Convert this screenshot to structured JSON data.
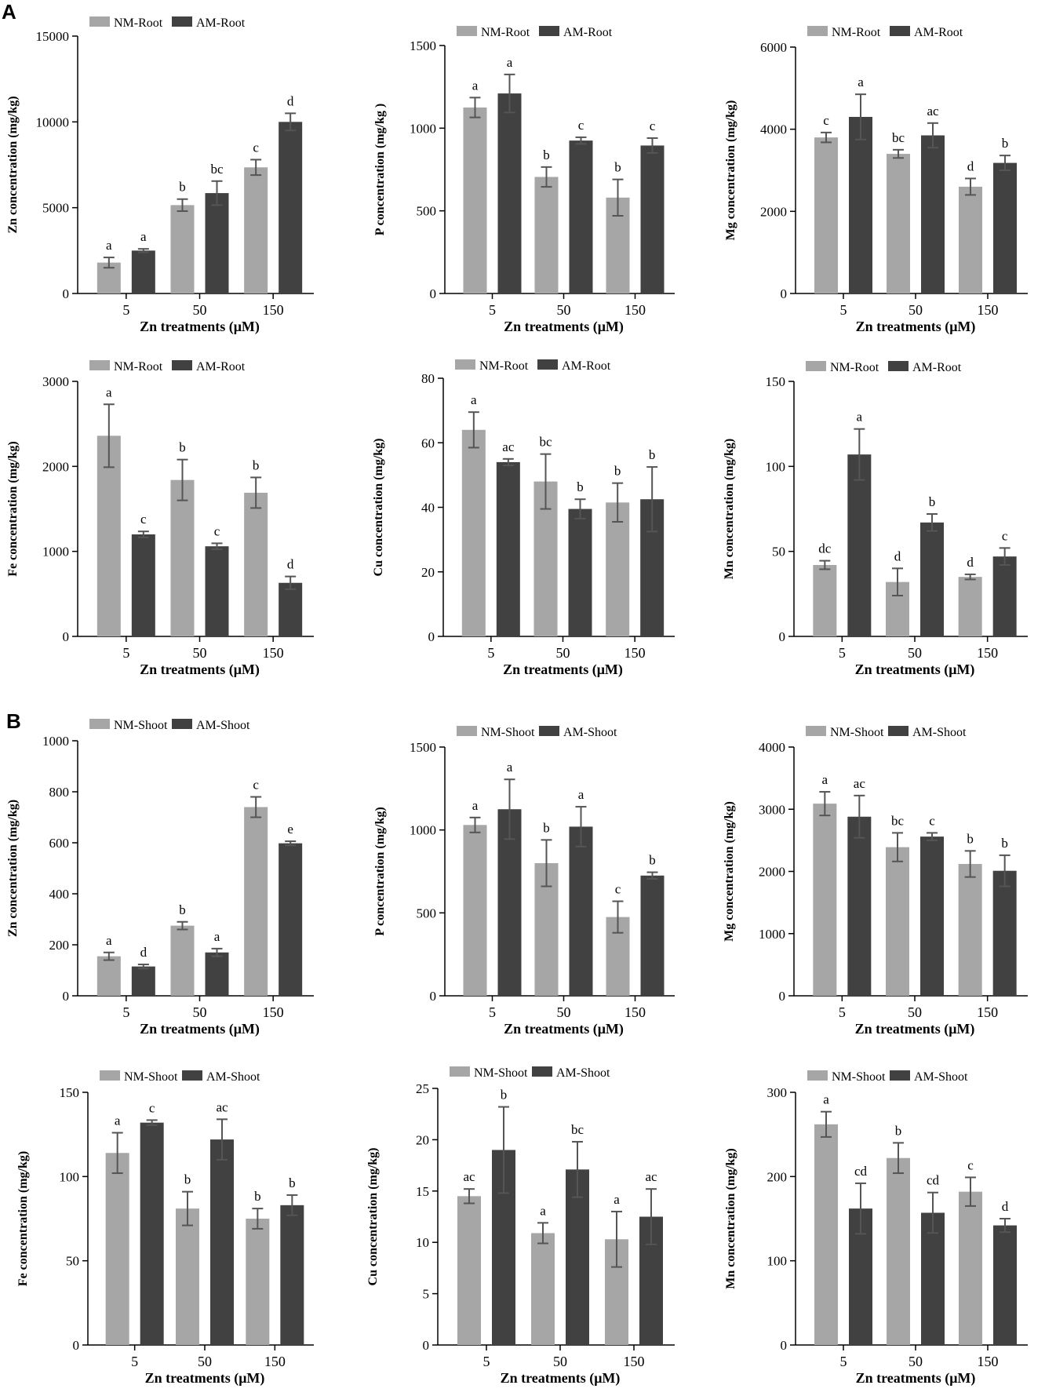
{
  "panel_labels": [
    "A",
    "B"
  ],
  "colors": {
    "nm": "#a6a6a6",
    "am": "#414141",
    "error_bar": "#555555",
    "axis": "#000000"
  },
  "chart_data": [
    {
      "id": "zn-root",
      "type": "bar",
      "title": "",
      "xlabel": "Zn treatments (μM)",
      "ylabel": "Zn concentration (mg/kg)",
      "categories": [
        "5",
        "50",
        "150"
      ],
      "ylim": [
        0,
        15000
      ],
      "yticks": [
        "0",
        "5000",
        "10000",
        "15000"
      ],
      "series": [
        {
          "name": "NM-Root",
          "values": [
            1800,
            5150,
            7350
          ],
          "errors": [
            300,
            350,
            450
          ],
          "letters": [
            "a",
            "b",
            "c"
          ]
        },
        {
          "name": "AM-Root",
          "values": [
            2500,
            5850,
            10000
          ],
          "errors": [
            100,
            700,
            500
          ],
          "letters": [
            "a",
            "bc",
            "d"
          ]
        }
      ]
    },
    {
      "id": "p-root",
      "type": "bar",
      "title": "",
      "xlabel": "Zn treatments (μM)",
      "ylabel": "P concentration (mg/kg )",
      "categories": [
        "5",
        "50",
        "150"
      ],
      "ylim": [
        0,
        1500
      ],
      "yticks": [
        "0",
        "500",
        "1000",
        "1500"
      ],
      "series": [
        {
          "name": "NM-Root",
          "values": [
            1125,
            705,
            580
          ],
          "errors": [
            60,
            60,
            110
          ],
          "letters": [
            "a",
            "b",
            "b"
          ]
        },
        {
          "name": "AM-Root",
          "values": [
            1210,
            925,
            895
          ],
          "errors": [
            115,
            20,
            45
          ],
          "letters": [
            "a",
            "c",
            "c"
          ]
        }
      ]
    },
    {
      "id": "mg-root",
      "type": "bar",
      "title": "",
      "xlabel": "Zn treatments (μM)",
      "ylabel": "Mg concentration (mg/kg)",
      "categories": [
        "5",
        "50",
        "150"
      ],
      "ylim": [
        0,
        6000
      ],
      "yticks": [
        "0",
        "2000",
        "4000",
        "6000"
      ],
      "series": [
        {
          "name": "NM-Root",
          "values": [
            3800,
            3400,
            2600
          ],
          "errors": [
            120,
            100,
            200
          ],
          "letters": [
            "c",
            "bc",
            "d"
          ]
        },
        {
          "name": "AM-Root",
          "values": [
            4300,
            3850,
            3180
          ],
          "errors": [
            550,
            300,
            180
          ],
          "letters": [
            "a",
            "ac",
            "b"
          ]
        }
      ]
    },
    {
      "id": "fe-root",
      "type": "bar",
      "title": "",
      "xlabel": "Zn treatments (μM)",
      "ylabel": "Fe concentration (mg/kg)",
      "categories": [
        "5",
        "50",
        "150"
      ],
      "ylim": [
        0,
        3000
      ],
      "yticks": [
        "0",
        "1000",
        "2000",
        "3000"
      ],
      "series": [
        {
          "name": "NM-Root",
          "values": [
            2360,
            1840,
            1690
          ],
          "errors": [
            370,
            240,
            180
          ],
          "letters": [
            "a",
            "b",
            "b"
          ]
        },
        {
          "name": "AM-Root",
          "values": [
            1200,
            1060,
            630
          ],
          "errors": [
            35,
            35,
            75
          ],
          "letters": [
            "c",
            "c",
            "d"
          ]
        }
      ]
    },
    {
      "id": "cu-root",
      "type": "bar",
      "title": "",
      "xlabel": "Zn treatments (μM)",
      "ylabel": "Cu concentration (mg/kg)",
      "categories": [
        "5",
        "50",
        "150"
      ],
      "ylim": [
        0,
        80
      ],
      "yticks": [
        "0",
        "20",
        "40",
        "60",
        "80"
      ],
      "series": [
        {
          "name": "NM-Root",
          "values": [
            64,
            48,
            41.5
          ],
          "errors": [
            5.5,
            8.5,
            6
          ],
          "letters": [
            "a",
            "bc",
            "b"
          ]
        },
        {
          "name": "AM-Root",
          "values": [
            54,
            39.5,
            42.5
          ],
          "errors": [
            1,
            3,
            10
          ],
          "letters": [
            "ac",
            "b",
            "b"
          ]
        }
      ]
    },
    {
      "id": "mn-root",
      "type": "bar",
      "title": "",
      "xlabel": "Zn treatments (μM)",
      "ylabel": "Mn concentration (mg/kg)",
      "categories": [
        "5",
        "50",
        "150"
      ],
      "ylim": [
        0,
        150
      ],
      "yticks": [
        "0",
        "50",
        "100",
        "150"
      ],
      "series": [
        {
          "name": "NM-Root",
          "values": [
            42,
            32,
            35
          ],
          "errors": [
            2.5,
            8,
            1.5
          ],
          "letters": [
            "dc",
            "d",
            "d"
          ]
        },
        {
          "name": "AM-Root",
          "values": [
            107,
            67,
            47
          ],
          "errors": [
            15,
            5,
            5
          ],
          "letters": [
            "a",
            "b",
            "c"
          ]
        }
      ]
    },
    {
      "id": "zn-shoot",
      "type": "bar",
      "title": "",
      "xlabel": "Zn treatments (μM)",
      "ylabel": "Zn concentration (mg/kg)",
      "categories": [
        "5",
        "50",
        "150"
      ],
      "ylim": [
        0,
        1000
      ],
      "yticks": [
        "0",
        "200",
        "400",
        "600",
        "800",
        "1000"
      ],
      "series": [
        {
          "name": "NM-Shoot",
          "values": [
            155,
            275,
            740
          ],
          "errors": [
            15,
            15,
            40
          ],
          "letters": [
            "a",
            "b",
            "c"
          ]
        },
        {
          "name": "AM-Shoot",
          "values": [
            115,
            170,
            598
          ],
          "errors": [
            8,
            15,
            8
          ],
          "letters": [
            "d",
            "a",
            "e"
          ]
        }
      ]
    },
    {
      "id": "p-shoot",
      "type": "bar",
      "title": "",
      "xlabel": "Zn treatments (μM)",
      "ylabel": "P concentration (mg/kg)",
      "categories": [
        "5",
        "50",
        "150"
      ],
      "ylim": [
        0,
        1500
      ],
      "yticks": [
        "0",
        "500",
        "1000",
        "1500"
      ],
      "series": [
        {
          "name": "NM-Shoot",
          "values": [
            1030,
            800,
            475
          ],
          "errors": [
            45,
            140,
            95
          ],
          "letters": [
            "a",
            "b",
            "c"
          ]
        },
        {
          "name": "AM-Shoot",
          "values": [
            1125,
            1020,
            725
          ],
          "errors": [
            180,
            120,
            20
          ],
          "letters": [
            "a",
            "a",
            "b"
          ]
        }
      ]
    },
    {
      "id": "mg-shoot",
      "type": "bar",
      "title": "",
      "xlabel": "Zn treatments (μM)",
      "ylabel": "Mg concentration (mg/kg)",
      "categories": [
        "5",
        "50",
        "150"
      ],
      "ylim": [
        0,
        4000
      ],
      "yticks": [
        "0",
        "1000",
        "2000",
        "3000",
        "4000"
      ],
      "series": [
        {
          "name": "NM-Shoot",
          "values": [
            3090,
            2390,
            2120
          ],
          "errors": [
            190,
            230,
            210
          ],
          "letters": [
            "a",
            "bc",
            "b"
          ]
        },
        {
          "name": "AM-Shoot",
          "values": [
            2880,
            2560,
            2010
          ],
          "errors": [
            340,
            60,
            250
          ],
          "letters": [
            "ac",
            "c",
            "b"
          ]
        }
      ]
    },
    {
      "id": "fe-shoot",
      "type": "bar",
      "title": "",
      "xlabel": "Zn treatments (μM)",
      "ylabel": "Fe concentration (mg/kg)",
      "categories": [
        "5",
        "50",
        "150"
      ],
      "ylim": [
        0,
        150
      ],
      "yticks": [
        "0",
        "50",
        "100",
        "150"
      ],
      "series": [
        {
          "name": "NM-Shoot",
          "values": [
            114,
            81,
            75
          ],
          "errors": [
            12,
            10,
            6
          ],
          "letters": [
            "a",
            "b",
            "b"
          ]
        },
        {
          "name": "AM-Shoot",
          "values": [
            132,
            122,
            83
          ],
          "errors": [
            1.5,
            12,
            6
          ],
          "letters": [
            "c",
            "ac",
            "b"
          ]
        }
      ]
    },
    {
      "id": "cu-shoot",
      "type": "bar",
      "title": "",
      "xlabel": "Zn treatments (μM)",
      "ylabel": "Cu concentration (mg/kg)",
      "categories": [
        "5",
        "50",
        "150"
      ],
      "ylim": [
        0,
        25
      ],
      "yticks": [
        "0",
        "5",
        "10",
        "15",
        "20",
        "25"
      ],
      "series": [
        {
          "name": "NM-Shoot",
          "values": [
            14.5,
            10.9,
            10.3
          ],
          "errors": [
            0.7,
            1,
            2.7
          ],
          "letters": [
            "ac",
            "a",
            "a"
          ]
        },
        {
          "name": "AM-Shoot",
          "values": [
            19,
            17.1,
            12.5
          ],
          "errors": [
            4.2,
            2.7,
            2.7
          ],
          "letters": [
            "b",
            "bc",
            "ac"
          ]
        }
      ]
    },
    {
      "id": "mn-shoot",
      "type": "bar",
      "title": "",
      "xlabel": "Zn treatments (μM)",
      "ylabel": "Mn concentration (mg/kg)",
      "categories": [
        "5",
        "50",
        "150"
      ],
      "ylim": [
        0,
        300
      ],
      "yticks": [
        "0",
        "100",
        "200",
        "300"
      ],
      "series": [
        {
          "name": "NM-Shoot",
          "values": [
            262,
            222,
            182
          ],
          "errors": [
            15,
            18,
            17
          ],
          "letters": [
            "a",
            "b",
            "c"
          ]
        },
        {
          "name": "AM-Shoot",
          "values": [
            162,
            157,
            142
          ],
          "errors": [
            30,
            24,
            8
          ],
          "letters": [
            "cd",
            "cd",
            "d"
          ]
        }
      ]
    }
  ]
}
